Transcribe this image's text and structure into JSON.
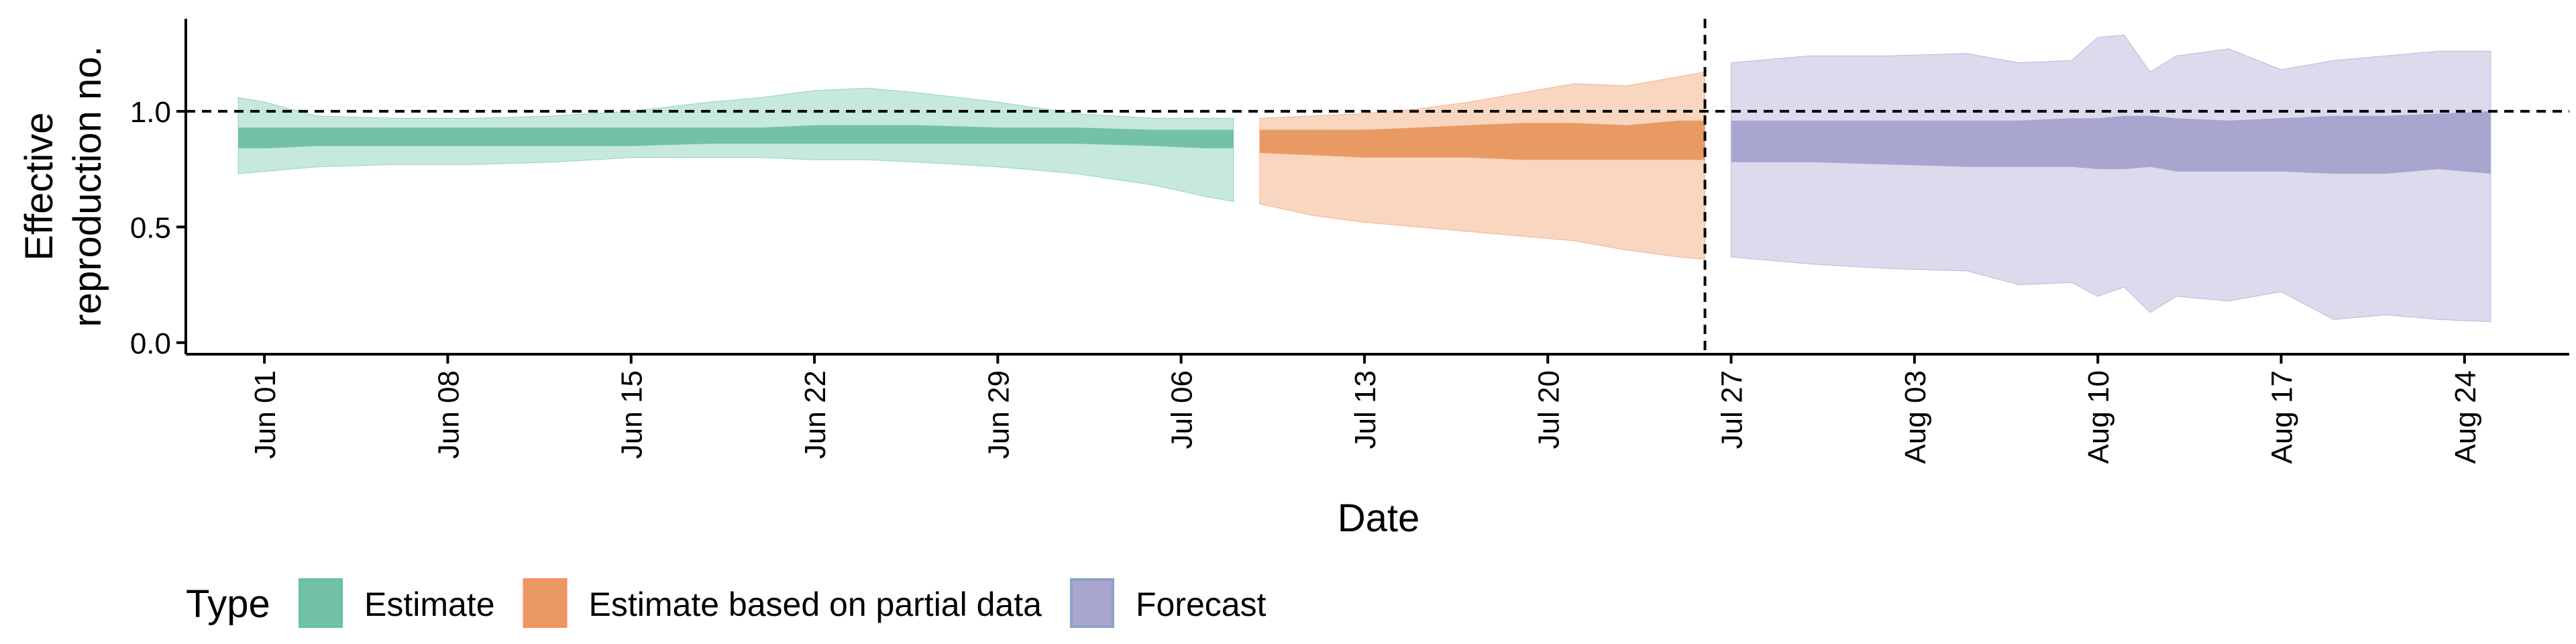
{
  "chart_data": {
    "type": "area",
    "xlabel": "Date",
    "ylabel_lines": [
      "Effective",
      "reproduction no."
    ],
    "y_ticks": [
      "0.0",
      "0.5",
      "1.0"
    ],
    "y_tick_values": [
      0.0,
      0.5,
      1.0
    ],
    "ylim": [
      -0.05,
      1.4
    ],
    "x_range": [
      "2020-05-29",
      "2020-08-28"
    ],
    "x_ticks": [
      "Jun 01",
      "Jun 08",
      "Jun 15",
      "Jun 22",
      "Jun 29",
      "Jul 06",
      "Jul 13",
      "Jul 20",
      "Jul 27",
      "Aug 03",
      "Aug 10",
      "Aug 17",
      "Aug 24"
    ],
    "x_tick_dates": [
      "2020-06-01",
      "2020-06-08",
      "2020-06-15",
      "2020-06-22",
      "2020-06-29",
      "2020-07-06",
      "2020-07-13",
      "2020-07-20",
      "2020-07-27",
      "2020-08-03",
      "2020-08-10",
      "2020-08-17",
      "2020-08-24"
    ],
    "reference_line_y": 1.0,
    "forecast_date_line": "2020-07-26",
    "legend": {
      "title": "Type",
      "position": "bottom"
    },
    "series": [
      {
        "name": "Estimate",
        "color": "#66C2A5",
        "fill_outer": "#C6E8DE",
        "fill_inner": "#73C1A8",
        "dates": [
          "2020-05-31",
          "2020-06-01",
          "2020-06-03",
          "2020-06-06",
          "2020-06-09",
          "2020-06-12",
          "2020-06-15",
          "2020-06-18",
          "2020-06-20",
          "2020-06-22",
          "2020-06-24",
          "2020-06-26",
          "2020-06-29",
          "2020-07-02",
          "2020-07-05",
          "2020-07-07",
          "2020-07-08"
        ],
        "upper90": [
          1.06,
          1.04,
          0.98,
          0.97,
          0.97,
          0.98,
          1.0,
          1.04,
          1.06,
          1.09,
          1.1,
          1.08,
          1.04,
          0.99,
          0.97,
          0.97,
          0.97
        ],
        "upper50": [
          0.93,
          0.93,
          0.93,
          0.93,
          0.93,
          0.93,
          0.93,
          0.93,
          0.93,
          0.94,
          0.94,
          0.94,
          0.93,
          0.93,
          0.92,
          0.92,
          0.92
        ],
        "lower50": [
          0.84,
          0.84,
          0.85,
          0.85,
          0.85,
          0.85,
          0.85,
          0.86,
          0.86,
          0.86,
          0.86,
          0.86,
          0.86,
          0.86,
          0.85,
          0.84,
          0.84
        ],
        "lower90": [
          0.73,
          0.74,
          0.76,
          0.77,
          0.77,
          0.78,
          0.8,
          0.8,
          0.8,
          0.79,
          0.79,
          0.78,
          0.76,
          0.73,
          0.68,
          0.63,
          0.61
        ]
      },
      {
        "name": "Estimate based on partial data",
        "color": "#FC8D62",
        "fill_outer": "#F8D6C0",
        "fill_inner": "#E99A63",
        "dates": [
          "2020-07-09",
          "2020-07-11",
          "2020-07-13",
          "2020-07-15",
          "2020-07-17",
          "2020-07-19",
          "2020-07-21",
          "2020-07-23",
          "2020-07-25",
          "2020-07-26"
        ],
        "upper90": [
          0.97,
          0.98,
          0.99,
          1.01,
          1.04,
          1.08,
          1.12,
          1.11,
          1.15,
          1.17
        ],
        "upper50": [
          0.92,
          0.92,
          0.92,
          0.93,
          0.94,
          0.95,
          0.95,
          0.94,
          0.96,
          0.96
        ],
        "lower50": [
          0.82,
          0.81,
          0.8,
          0.8,
          0.8,
          0.79,
          0.79,
          0.79,
          0.79,
          0.79
        ],
        "lower90": [
          0.6,
          0.55,
          0.52,
          0.5,
          0.48,
          0.46,
          0.44,
          0.4,
          0.37,
          0.36
        ]
      },
      {
        "name": "Forecast",
        "color": "#8DA0CB",
        "fill_outer": "#DCDAEC",
        "fill_inner": "#A8A5CF",
        "dates": [
          "2020-07-27",
          "2020-07-30",
          "2020-08-02",
          "2020-08-05",
          "2020-08-07",
          "2020-08-09",
          "2020-08-10",
          "2020-08-11",
          "2020-08-12",
          "2020-08-13",
          "2020-08-15",
          "2020-08-17",
          "2020-08-19",
          "2020-08-21",
          "2020-08-23",
          "2020-08-25"
        ],
        "upper90": [
          1.21,
          1.24,
          1.24,
          1.25,
          1.21,
          1.22,
          1.32,
          1.33,
          1.17,
          1.24,
          1.27,
          1.18,
          1.22,
          1.24,
          1.26,
          1.26
        ],
        "upper50": [
          0.96,
          0.96,
          0.96,
          0.96,
          0.96,
          0.97,
          0.97,
          0.98,
          0.98,
          0.97,
          0.96,
          0.97,
          0.98,
          0.98,
          0.99,
          1.0
        ],
        "lower50": [
          0.78,
          0.78,
          0.77,
          0.76,
          0.76,
          0.76,
          0.75,
          0.75,
          0.76,
          0.74,
          0.74,
          0.74,
          0.73,
          0.73,
          0.75,
          0.73
        ],
        "lower90": [
          0.37,
          0.34,
          0.32,
          0.31,
          0.25,
          0.26,
          0.2,
          0.24,
          0.13,
          0.2,
          0.18,
          0.22,
          0.1,
          0.12,
          0.1,
          0.09
        ]
      }
    ]
  }
}
